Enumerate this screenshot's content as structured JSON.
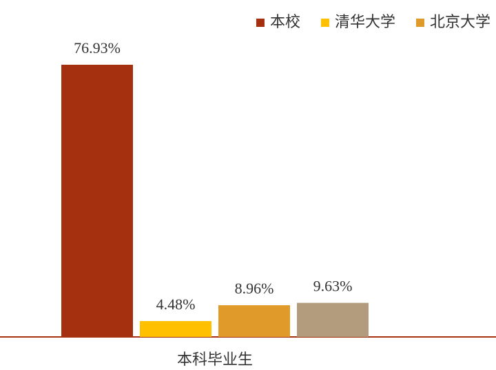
{
  "chart_data": {
    "type": "bar",
    "categories": [
      "本科毕业生"
    ],
    "series": [
      {
        "name": "本校",
        "color": "#a5300f",
        "values": [
          76.93
        ],
        "value_labels": [
          "76.93%"
        ]
      },
      {
        "name": "清华大学",
        "color": "#ffc000",
        "values": [
          4.48
        ],
        "value_labels": [
          "4.48%"
        ]
      },
      {
        "name": "北京大学",
        "color": "#e09a2a",
        "values": [
          8.96
        ],
        "value_labels": [
          "8.96%"
        ]
      },
      {
        "color": "#b39c7e",
        "values": [
          9.63
        ],
        "value_labels": [
          "9.63%"
        ]
      }
    ],
    "legend": "top-right"
  }
}
